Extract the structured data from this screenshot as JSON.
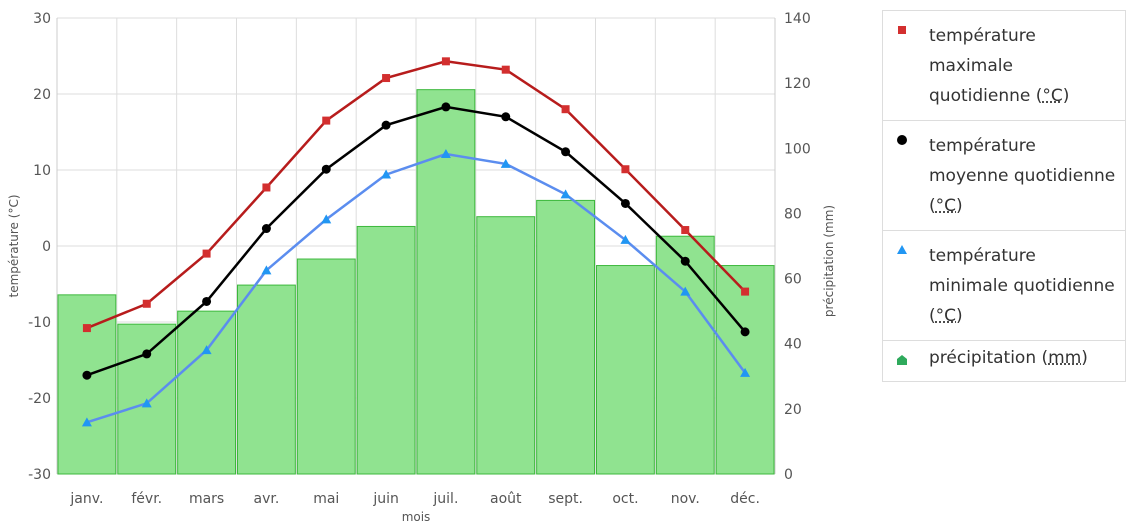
{
  "chart_data": {
    "type": "bar+line",
    "categories": [
      "janv.",
      "févr.",
      "mars",
      "avr.",
      "mai",
      "juin",
      "juil.",
      "août",
      "sept.",
      "oct.",
      "nov.",
      "déc."
    ],
    "xlabel": "mois",
    "ylabel_left": "température (°C)",
    "ylabel_right": "précipitation (mm)",
    "ylim_left": [
      -30,
      30
    ],
    "yticks_left": [
      -30,
      -20,
      -10,
      0,
      10,
      20,
      30
    ],
    "ylim_right": [
      0,
      140
    ],
    "yticks_right": [
      0,
      20,
      40,
      60,
      80,
      100,
      120,
      140
    ],
    "grid": true,
    "legend_position": "right",
    "series": [
      {
        "name_prefix": "température maximale quotidienne",
        "unit": "°C",
        "type": "line",
        "axis": "left",
        "marker": "square",
        "color": "#b71c1c",
        "marker_color": "#d32f2f",
        "values": [
          -10.8,
          -7.6,
          -1.0,
          7.7,
          16.5,
          22.1,
          24.3,
          23.2,
          18.0,
          10.1,
          2.1,
          -6.0
        ]
      },
      {
        "name_prefix": "température moyenne quotidienne",
        "unit": "°C",
        "type": "line",
        "axis": "left",
        "marker": "circle",
        "color": "#000000",
        "marker_color": "#000000",
        "values": [
          -17.0,
          -14.2,
          -7.3,
          2.3,
          10.1,
          15.9,
          18.3,
          17.0,
          12.4,
          5.6,
          -2.0,
          -11.3
        ]
      },
      {
        "name_prefix": "température minimale quotidienne",
        "unit": "°C",
        "type": "line",
        "axis": "left",
        "marker": "triangle",
        "color": "#5b8def",
        "marker_color": "#2196f3",
        "values": [
          -23.2,
          -20.7,
          -13.7,
          -3.2,
          3.5,
          9.4,
          12.1,
          10.8,
          6.8,
          0.8,
          -6.0,
          -16.7
        ]
      },
      {
        "name_prefix": "précipitation",
        "unit": "mm",
        "type": "bar",
        "axis": "right",
        "marker": "house",
        "color": "#90e390",
        "stroke_color": "#3cb83c",
        "marker_color": "#2eaa5c",
        "values": [
          55,
          46,
          50,
          58,
          66,
          76,
          118,
          79,
          84,
          64,
          73,
          64
        ]
      }
    ]
  }
}
